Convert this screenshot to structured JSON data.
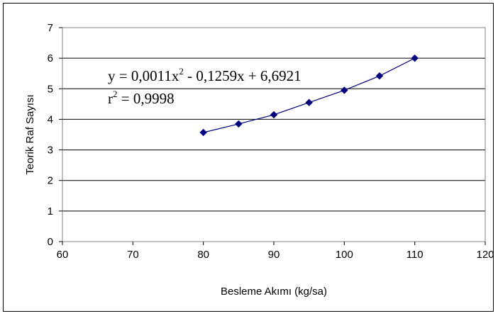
{
  "chart_data": {
    "type": "scatter",
    "xlabel": "Besleme Akımı (kg/sa)",
    "ylabel": "Teorik Raf Sayısı",
    "xlim": [
      60,
      120
    ],
    "ylim": [
      0,
      7
    ],
    "xticks": [
      60,
      70,
      80,
      90,
      100,
      110,
      120
    ],
    "yticks": [
      0,
      1,
      2,
      3,
      4,
      5,
      6,
      7
    ],
    "grid": "horizontal",
    "legend": "none",
    "series": [
      {
        "x": [
          80,
          85,
          90,
          95,
          100,
          105,
          110
        ],
        "y": [
          3.57,
          3.85,
          4.15,
          4.55,
          4.95,
          5.42,
          6.0
        ],
        "marker": "diamond",
        "trendline": "polynomial-2",
        "color": "#000080"
      }
    ],
    "annotation": {
      "line1_prefix": "y = 0,0011x",
      "line1_sup": "2",
      "line1_suffix": " - 0,1259x + 6,6921",
      "line2_prefix": "r",
      "line2_sup": "2",
      "line2_suffix": " = 0,9998"
    }
  }
}
